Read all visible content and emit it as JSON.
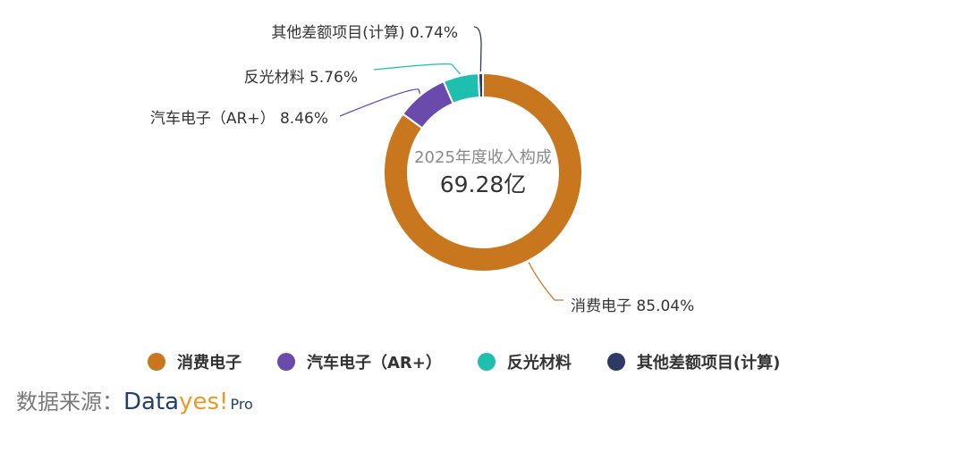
{
  "chart_data": {
    "type": "pie",
    "style": "donut",
    "center_title": "2025年度收入构成",
    "center_value": "69.28亿",
    "slices": [
      {
        "name": "消费电子",
        "value": 85.04,
        "label": "消费电子 85.04%",
        "color": "#c8771f"
      },
      {
        "name": "汽车电子（AR+）",
        "value": 8.46,
        "label": "汽车电子（AR+） 8.46%",
        "color": "#6a4bab"
      },
      {
        "name": "反光材料",
        "value": 5.76,
        "label": "反光材料 5.76%",
        "color": "#1fbfb0"
      },
      {
        "name": "其他差额项目(计算)",
        "value": 0.74,
        "label": "其他差额项目(计算) 0.74%",
        "color": "#2d3a66"
      }
    ],
    "legend_position": "bottom"
  },
  "legend": [
    {
      "label": "消费电子",
      "color": "#c8771f"
    },
    {
      "label": "汽车电子（AR+）",
      "color": "#6a4bab"
    },
    {
      "label": "反光材料",
      "color": "#1fbfb0"
    },
    {
      "label": "其他差额项目(计算)",
      "color": "#2d3a66"
    }
  ],
  "source": {
    "label": "数据来源：",
    "brand_part1": "Data",
    "brand_part2": "yes!",
    "brand_suffix": "Pro"
  }
}
